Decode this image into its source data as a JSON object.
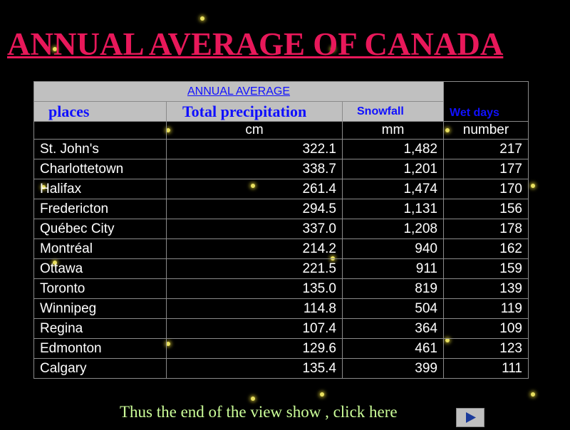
{
  "title": "ANNUAL AVERAGE OF CANADA",
  "table": {
    "group_header": "ANNUAL AVERAGE",
    "columns": [
      "places",
      "Total precipitation",
      "Snowfall",
      "Wet days"
    ],
    "units": [
      "cm",
      "mm",
      "number"
    ],
    "rows": [
      [
        "St. John's",
        "322.1",
        "1,482",
        "217"
      ],
      [
        "Charlottetown",
        "338.7",
        "1,201",
        "177"
      ],
      [
        "Halifax",
        "261.4",
        "1,474",
        "170"
      ],
      [
        "Fredericton",
        "294.5",
        "1,131",
        "156"
      ],
      [
        "Québec City",
        "337.0",
        "1,208",
        "178"
      ],
      [
        "Montréal",
        "214.2",
        "940",
        "162"
      ],
      [
        "Ottawa",
        "221.5",
        "911",
        "159"
      ],
      [
        "Toronto",
        "135.0",
        "819",
        "139"
      ],
      [
        "Winnipeg",
        "114.8",
        "504",
        "119"
      ],
      [
        "Regina",
        "107.4",
        "364",
        "109"
      ],
      [
        "Edmonton",
        "129.6",
        "461",
        "123"
      ],
      [
        "Calgary",
        "135.4",
        "399",
        "111"
      ]
    ]
  },
  "footer": "Thus the end of the view show , click here"
}
